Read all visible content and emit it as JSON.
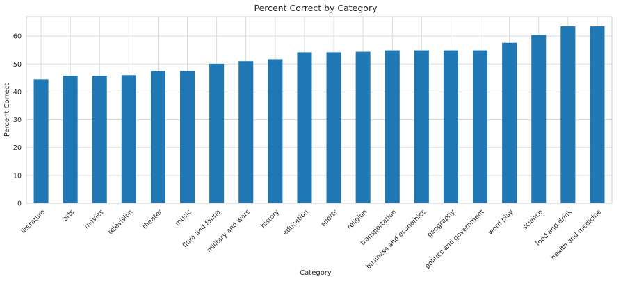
{
  "chart_data": {
    "type": "bar",
    "title": "Percent Correct by Category",
    "xlabel": "Category",
    "ylabel": "Percent Correct",
    "ylim": [
      0,
      67
    ],
    "yticks": [
      0,
      10,
      20,
      30,
      40,
      50,
      60
    ],
    "grid": true,
    "bar_color": "#1f77b4",
    "categories": [
      "literature",
      "arts",
      "movies",
      "television",
      "theater",
      "music",
      "flora and fauna",
      "military and wars",
      "history",
      "education",
      "sports",
      "religion",
      "transportation",
      "business and economics",
      "geography",
      "politics and government",
      "word play",
      "science",
      "food and drink",
      "health and medicine"
    ],
    "values": [
      44.5,
      45.8,
      45.8,
      46.0,
      47.5,
      47.5,
      50.1,
      51.0,
      51.7,
      54.2,
      54.2,
      54.4,
      54.9,
      54.9,
      54.9,
      54.9,
      57.6,
      60.4,
      63.5,
      63.5
    ]
  }
}
